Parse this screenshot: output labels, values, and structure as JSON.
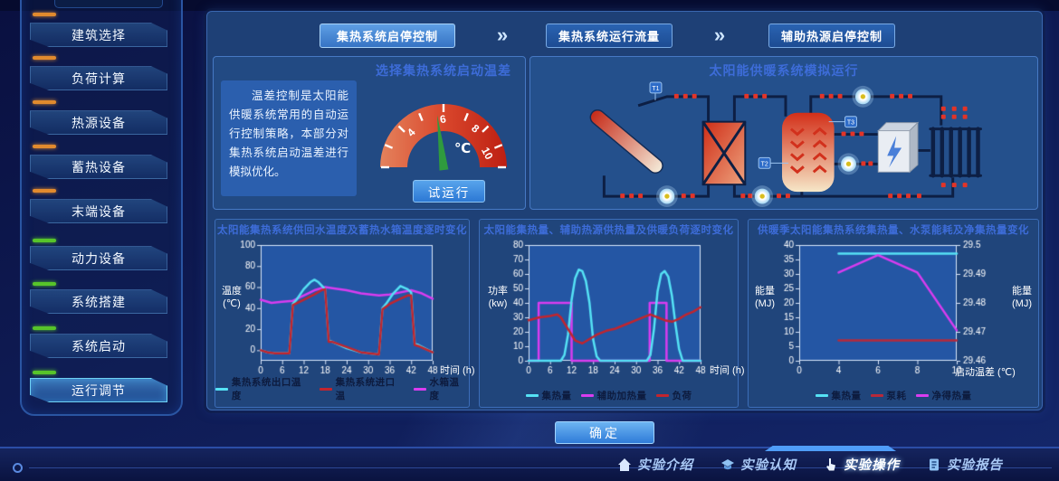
{
  "sidebar": {
    "items": [
      {
        "label": "建筑选择",
        "accent": "#e08a2e",
        "active": false
      },
      {
        "label": "负荷计算",
        "accent": "#e08a2e",
        "active": false
      },
      {
        "label": "热源设备",
        "accent": "#e08a2e",
        "active": false
      },
      {
        "label": "蓄热设备",
        "accent": "#e08a2e",
        "active": false
      },
      {
        "label": "末端设备",
        "accent": "#e08a2e",
        "active": false
      },
      {
        "label": "动力设备",
        "accent": "#57c42a",
        "active": false
      },
      {
        "label": "系统搭建",
        "accent": "#57c42a",
        "active": false
      },
      {
        "label": "系统启动",
        "accent": "#57c42a",
        "active": false
      },
      {
        "label": "运行调节",
        "accent": "#57c42a",
        "active": true
      }
    ]
  },
  "flow": {
    "arrow": "»",
    "steps": [
      {
        "label": "集热系统启停控制",
        "active": true
      },
      {
        "label": "集热系统运行流量",
        "active": false
      },
      {
        "label": "辅助热源启停控制",
        "active": false
      }
    ]
  },
  "gauge_panel": {
    "title": "选择集热系统启动温差",
    "description": "温差控制是太阳能供暖系统常用的自动运行控制策略，本部分对集热系统启动温差进行模拟优化。",
    "unit": "℃",
    "scale_min": 2,
    "scale_max": 10,
    "tick_labels": [
      "4",
      "6",
      "8",
      "10"
    ],
    "value": 5.8,
    "needle_color": "#2f9a3e",
    "run_button": "试运行"
  },
  "diagram_panel": {
    "title": "太阳能供暖系统模拟运行",
    "sensor_labels": [
      "T1",
      "T2",
      "T3"
    ]
  },
  "chart_data": [
    {
      "type": "line",
      "title": "太阳能集热系统供回水温度及蓄热水箱温度逐时变化",
      "xlabel": "时间 (h)",
      "ylabel": "温度 (℃)",
      "xlim": [
        0,
        48
      ],
      "ylim": [
        -10,
        100
      ],
      "xticks": [
        0,
        6,
        12,
        18,
        24,
        30,
        36,
        42,
        48
      ],
      "yticks": [
        0,
        20,
        40,
        60,
        80,
        100
      ],
      "grid": false,
      "legend_position": "bottom",
      "legend": [
        {
          "label": "集热系统出口温度",
          "color": "#55e2f5"
        },
        {
          "label": "集热系统进口温",
          "color": "#c2252e"
        },
        {
          "label": "水箱温度",
          "color": "#d93cf0"
        }
      ],
      "series": [
        {
          "name": "水箱温度",
          "color": "#d93cf0",
          "x": [
            0,
            3,
            6,
            9,
            12,
            15,
            18,
            20,
            24,
            28,
            33,
            36,
            39,
            42,
            45,
            48
          ],
          "y": [
            48,
            45,
            46,
            47,
            52,
            57,
            60,
            59,
            57,
            54,
            52,
            53,
            55,
            57,
            54,
            49
          ]
        },
        {
          "name": "集热系统出口温度",
          "color": "#55e2f5",
          "x": [
            0,
            2,
            4,
            6,
            8,
            9,
            10,
            12,
            14,
            15,
            16,
            18,
            19,
            20,
            24,
            28,
            33,
            34,
            35,
            37,
            39,
            41,
            42,
            43,
            44,
            48
          ],
          "y": [
            0,
            -2,
            -3,
            -3,
            -3,
            44,
            48,
            58,
            65,
            67,
            65,
            58,
            9,
            8,
            2,
            -2,
            -4,
            40,
            44,
            54,
            61,
            58,
            55,
            6,
            5,
            -2
          ]
        },
        {
          "name": "集热系统进口温",
          "color": "#c2252e",
          "x": [
            0,
            2,
            4,
            6,
            8,
            9,
            12,
            15,
            17,
            18,
            19,
            20,
            24,
            28,
            33,
            34,
            36,
            39,
            41,
            42,
            43,
            44,
            48
          ],
          "y": [
            0,
            -2,
            -3,
            -3,
            -3,
            43,
            48,
            53,
            57,
            58,
            8,
            8,
            3,
            -2,
            -4,
            39,
            44,
            49,
            52,
            52,
            5,
            4,
            -2
          ]
        }
      ]
    },
    {
      "type": "line",
      "title": "太阳能集热量、辅助热源供热量及供暖负荷逐时变化",
      "xlabel": "时间 (h)",
      "ylabel": "功率 (kw)",
      "xlim": [
        0,
        48
      ],
      "ylim": [
        0,
        80
      ],
      "xticks": [
        0,
        6,
        12,
        18,
        24,
        30,
        36,
        42,
        48
      ],
      "yticks": [
        0,
        10,
        20,
        30,
        40,
        50,
        60,
        70,
        80
      ],
      "grid": false,
      "legend_position": "bottom",
      "legend": [
        {
          "label": "集热量",
          "color": "#55e2f5"
        },
        {
          "label": "辅助加热量",
          "color": "#d93cf0"
        },
        {
          "label": "负荷",
          "color": "#c2252e"
        }
      ],
      "series": [
        {
          "name": "辅助加热量",
          "color": "#d93cf0",
          "x": [
            0,
            2.8,
            2.8,
            12,
            12,
            33.8,
            33.8,
            38.5,
            38.5,
            48
          ],
          "y": [
            0,
            0,
            40,
            40,
            0,
            0,
            40,
            40,
            0,
            0
          ]
        },
        {
          "name": "集热量",
          "color": "#55e2f5",
          "x": [
            0,
            9,
            10,
            11,
            12,
            13,
            14,
            15,
            16,
            17,
            18,
            19,
            20,
            33,
            34,
            35,
            36,
            37,
            38,
            39,
            40,
            41,
            42,
            43,
            48
          ],
          "y": [
            0,
            0,
            4,
            18,
            42,
            57,
            63,
            62,
            55,
            40,
            15,
            3,
            0,
            0,
            4,
            22,
            48,
            60,
            62,
            58,
            45,
            25,
            8,
            0,
            0
          ]
        },
        {
          "name": "负荷",
          "color": "#c2252e",
          "x": [
            0,
            3,
            6,
            8,
            9,
            11,
            13,
            15,
            17,
            19,
            22,
            24,
            27,
            30,
            33,
            34,
            36,
            38,
            40,
            42,
            44,
            46,
            48
          ],
          "y": [
            28,
            30,
            31,
            32,
            30,
            22,
            14,
            12,
            15,
            18,
            21,
            22,
            25,
            28,
            31,
            32,
            30,
            28,
            27,
            29,
            32,
            34,
            37
          ]
        }
      ]
    },
    {
      "type": "line",
      "title": "供暖季太阳能集热系统集热量、水泵能耗及净集热量变化",
      "xlabel": "启动温差 (℃)",
      "ylabel": "能量 (MJ)",
      "ylabel_right": "能量 (MJ)",
      "x_even": true,
      "ylim": [
        0,
        40
      ],
      "xticks": [
        0,
        4,
        6,
        8,
        10
      ],
      "yticks": [
        0,
        5,
        10,
        15,
        20,
        25,
        30,
        35,
        40
      ],
      "yticks_right": [
        29.46,
        29.47,
        29.48,
        29.49,
        29.5
      ],
      "grid": false,
      "legend_position": "bottom",
      "legend": [
        {
          "label": "集热量",
          "color": "#55e2f5"
        },
        {
          "label": "泵耗",
          "color": "#b8293a"
        },
        {
          "label": "净得热量",
          "color": "#d93cf0"
        }
      ],
      "series": [
        {
          "name": "集热量",
          "color": "#55e2f5",
          "x": [
            4,
            6,
            8,
            10
          ],
          "y": [
            37,
            37,
            37,
            37
          ]
        },
        {
          "name": "泵耗",
          "color": "#b8293a",
          "x": [
            4,
            6,
            8,
            10
          ],
          "y": [
            7,
            7,
            7,
            7
          ]
        },
        {
          "name": "净得热量",
          "color": "#d93cf0",
          "x": [
            4,
            6,
            8,
            10
          ],
          "y": [
            30.5,
            36.5,
            30.5,
            10.5
          ]
        }
      ]
    }
  ],
  "confirm_button": "确定",
  "bottom_nav": {
    "items": [
      {
        "icon": "home-icon",
        "label": "实验介绍",
        "active": false
      },
      {
        "icon": "graduation-cap-icon",
        "label": "实验认知",
        "active": false
      },
      {
        "icon": "hand-pointer-icon",
        "label": "实验操作",
        "active": true
      },
      {
        "icon": "report-icon",
        "label": "实验报告",
        "active": false
      }
    ]
  }
}
